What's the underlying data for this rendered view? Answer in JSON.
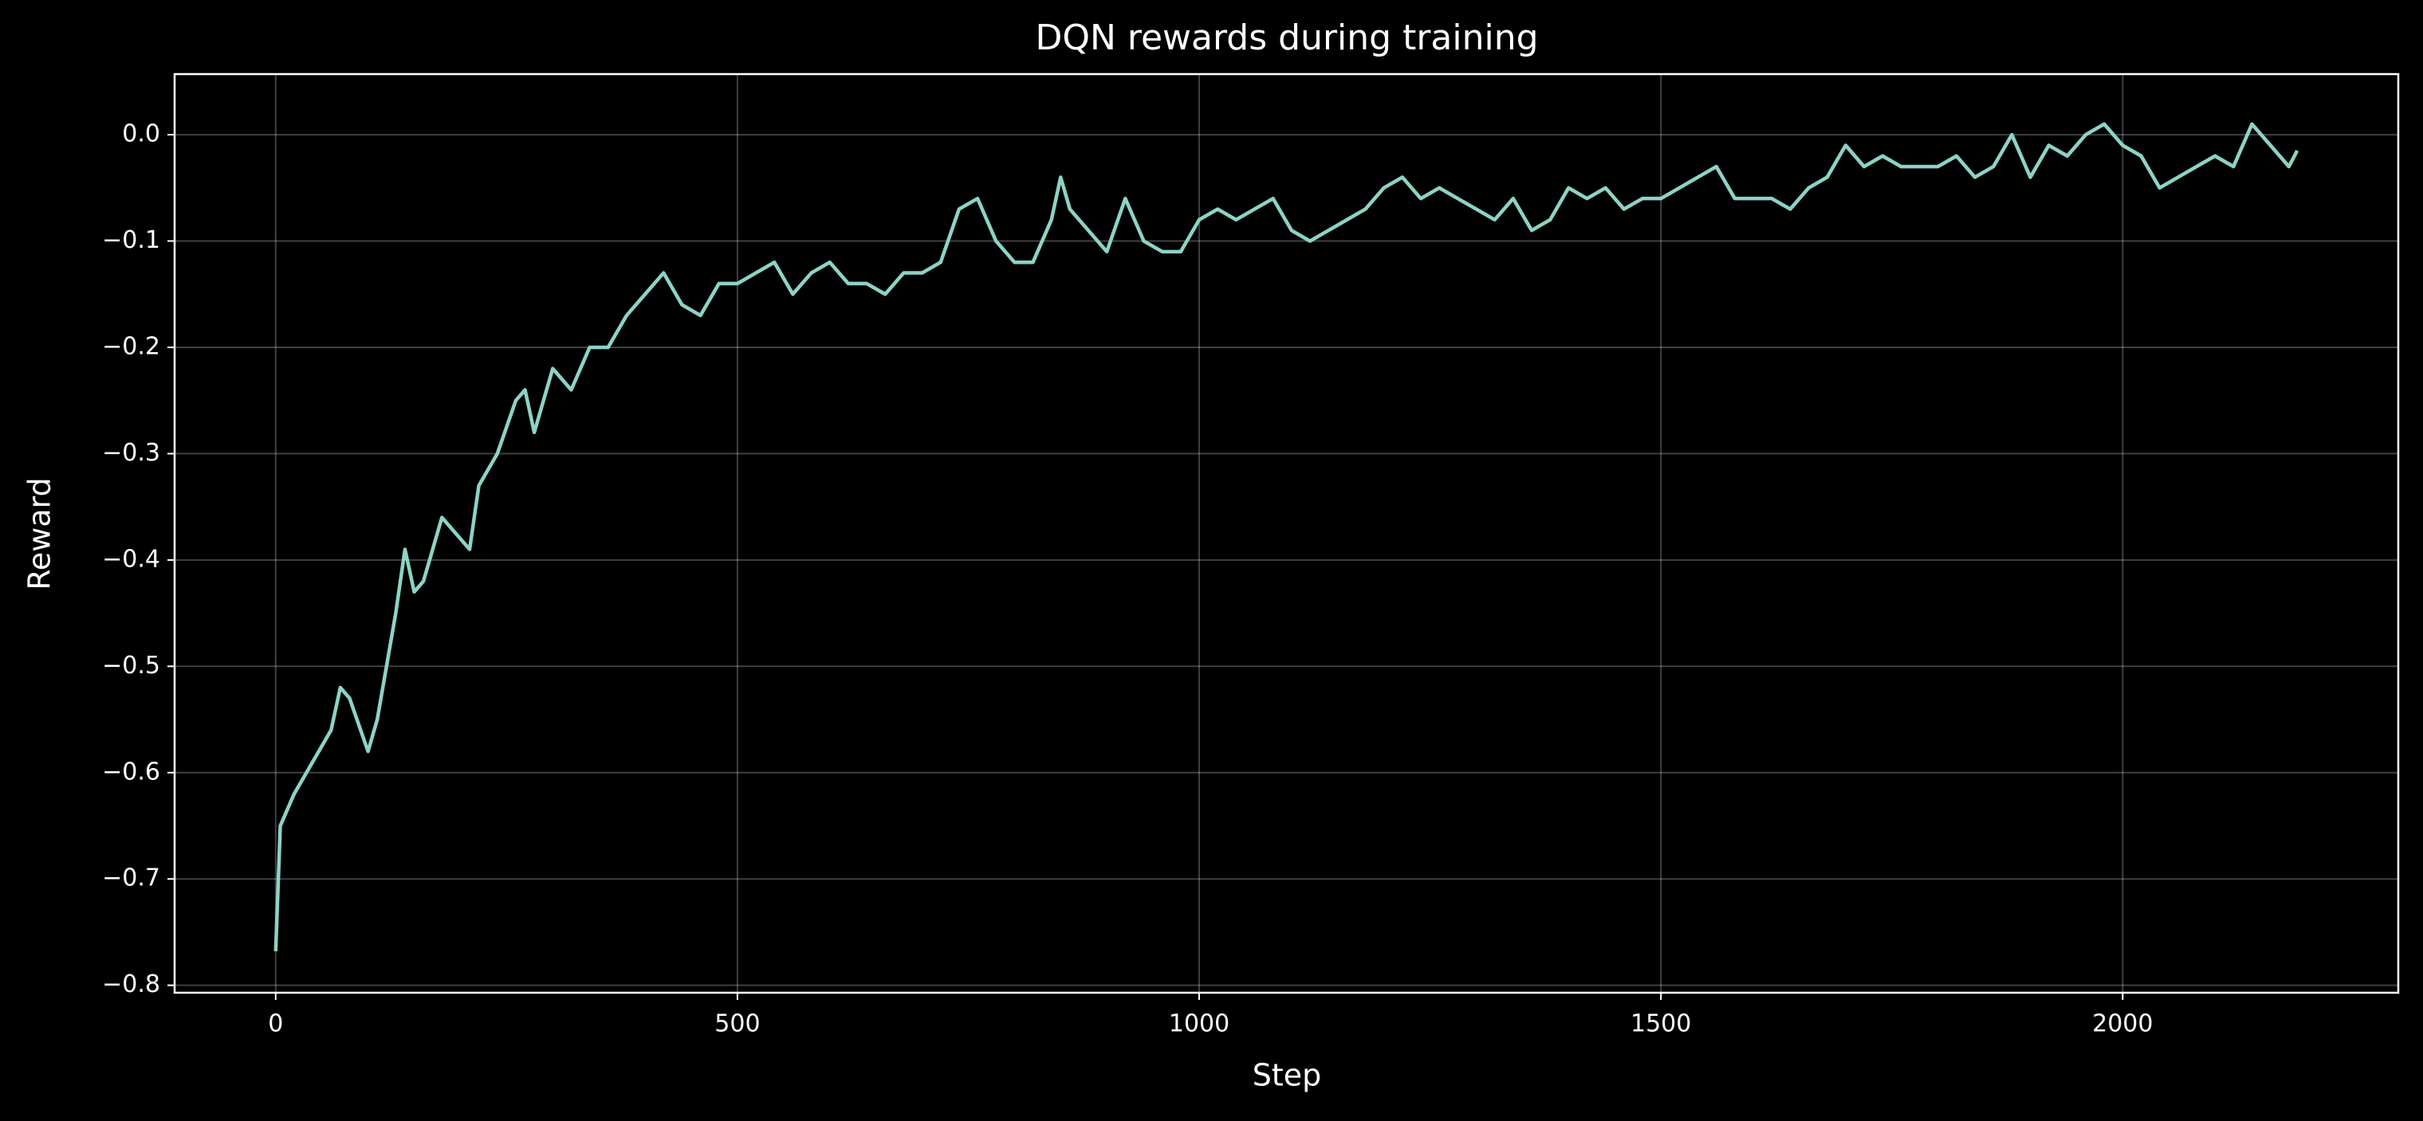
{
  "chart_data": {
    "type": "line",
    "title": "DQN rewards during training",
    "x_label": "Step",
    "y_label": "Reward",
    "color": "#8dd3c7",
    "grid": true,
    "x": [
      0,
      5,
      20,
      40,
      60,
      70,
      80,
      100,
      110,
      120,
      130,
      140,
      150,
      160,
      180,
      200,
      210,
      220,
      240,
      260,
      270,
      280,
      300,
      320,
      340,
      360,
      380,
      400,
      420,
      440,
      460,
      480,
      500,
      520,
      540,
      560,
      580,
      600,
      620,
      640,
      660,
      680,
      700,
      720,
      740,
      760,
      780,
      800,
      820,
      840,
      850,
      860,
      880,
      900,
      920,
      940,
      960,
      980,
      1000,
      1020,
      1040,
      1060,
      1080,
      1100,
      1120,
      1140,
      1160,
      1180,
      1200,
      1220,
      1240,
      1260,
      1280,
      1300,
      1320,
      1340,
      1360,
      1380,
      1400,
      1420,
      1440,
      1460,
      1480,
      1500,
      1520,
      1540,
      1560,
      1580,
      1600,
      1620,
      1640,
      1660,
      1680,
      1700,
      1720,
      1740,
      1760,
      1780,
      1800,
      1820,
      1840,
      1860,
      1880,
      1900,
      1920,
      1940,
      1960,
      1980,
      2000,
      2020,
      2040,
      2060,
      2080,
      2100,
      2120,
      2140,
      2160,
      2180,
      2189
    ],
    "values": [
      -0.768,
      -0.65,
      -0.62,
      -0.59,
      -0.56,
      -0.52,
      -0.53,
      -0.58,
      -0.55,
      -0.5,
      -0.45,
      -0.39,
      -0.43,
      -0.42,
      -0.36,
      -0.38,
      -0.39,
      -0.33,
      -0.3,
      -0.25,
      -0.24,
      -0.28,
      -0.22,
      -0.24,
      -0.2,
      -0.2,
      -0.17,
      -0.15,
      -0.13,
      -0.16,
      -0.17,
      -0.14,
      -0.14,
      -0.13,
      -0.12,
      -0.15,
      -0.13,
      -0.12,
      -0.14,
      -0.14,
      -0.15,
      -0.13,
      -0.13,
      -0.12,
      -0.07,
      -0.06,
      -0.1,
      -0.12,
      -0.12,
      -0.08,
      -0.04,
      -0.07,
      -0.09,
      -0.11,
      -0.06,
      -0.1,
      -0.11,
      -0.11,
      -0.08,
      -0.07,
      -0.08,
      -0.07,
      -0.06,
      -0.09,
      -0.1,
      -0.09,
      -0.08,
      -0.07,
      -0.05,
      -0.04,
      -0.06,
      -0.05,
      -0.06,
      -0.07,
      -0.08,
      -0.06,
      -0.09,
      -0.08,
      -0.05,
      -0.06,
      -0.05,
      -0.07,
      -0.06,
      -0.06,
      -0.05,
      -0.04,
      -0.03,
      -0.06,
      -0.06,
      -0.06,
      -0.07,
      -0.05,
      -0.04,
      -0.01,
      -0.03,
      -0.02,
      -0.03,
      -0.03,
      -0.03,
      -0.02,
      -0.04,
      -0.03,
      0.0,
      -0.04,
      -0.01,
      -0.02,
      0.0,
      0.01,
      -0.01,
      -0.02,
      -0.05,
      -0.04,
      -0.03,
      -0.02,
      -0.03,
      0.01,
      -0.01,
      -0.03,
      -0.015
    ],
    "xlim": [
      -109.45,
      2298.45
    ],
    "xticks": [
      0,
      500,
      1000,
      1500,
      2000
    ],
    "ylim": [
      -0.807,
      0.057
    ],
    "yticks": [
      {
        "value": -0.8,
        "label": "−0.8"
      },
      {
        "value": -0.7,
        "label": "−0.7"
      },
      {
        "value": -0.6,
        "label": "−0.6"
      },
      {
        "value": -0.5,
        "label": "−0.5"
      },
      {
        "value": -0.4,
        "label": "−0.4"
      },
      {
        "value": -0.3,
        "label": "−0.3"
      },
      {
        "value": -0.2,
        "label": "−0.2"
      },
      {
        "value": -0.1,
        "label": "−0.1"
      },
      {
        "value": 0.0,
        "label": "0.0"
      }
    ]
  }
}
